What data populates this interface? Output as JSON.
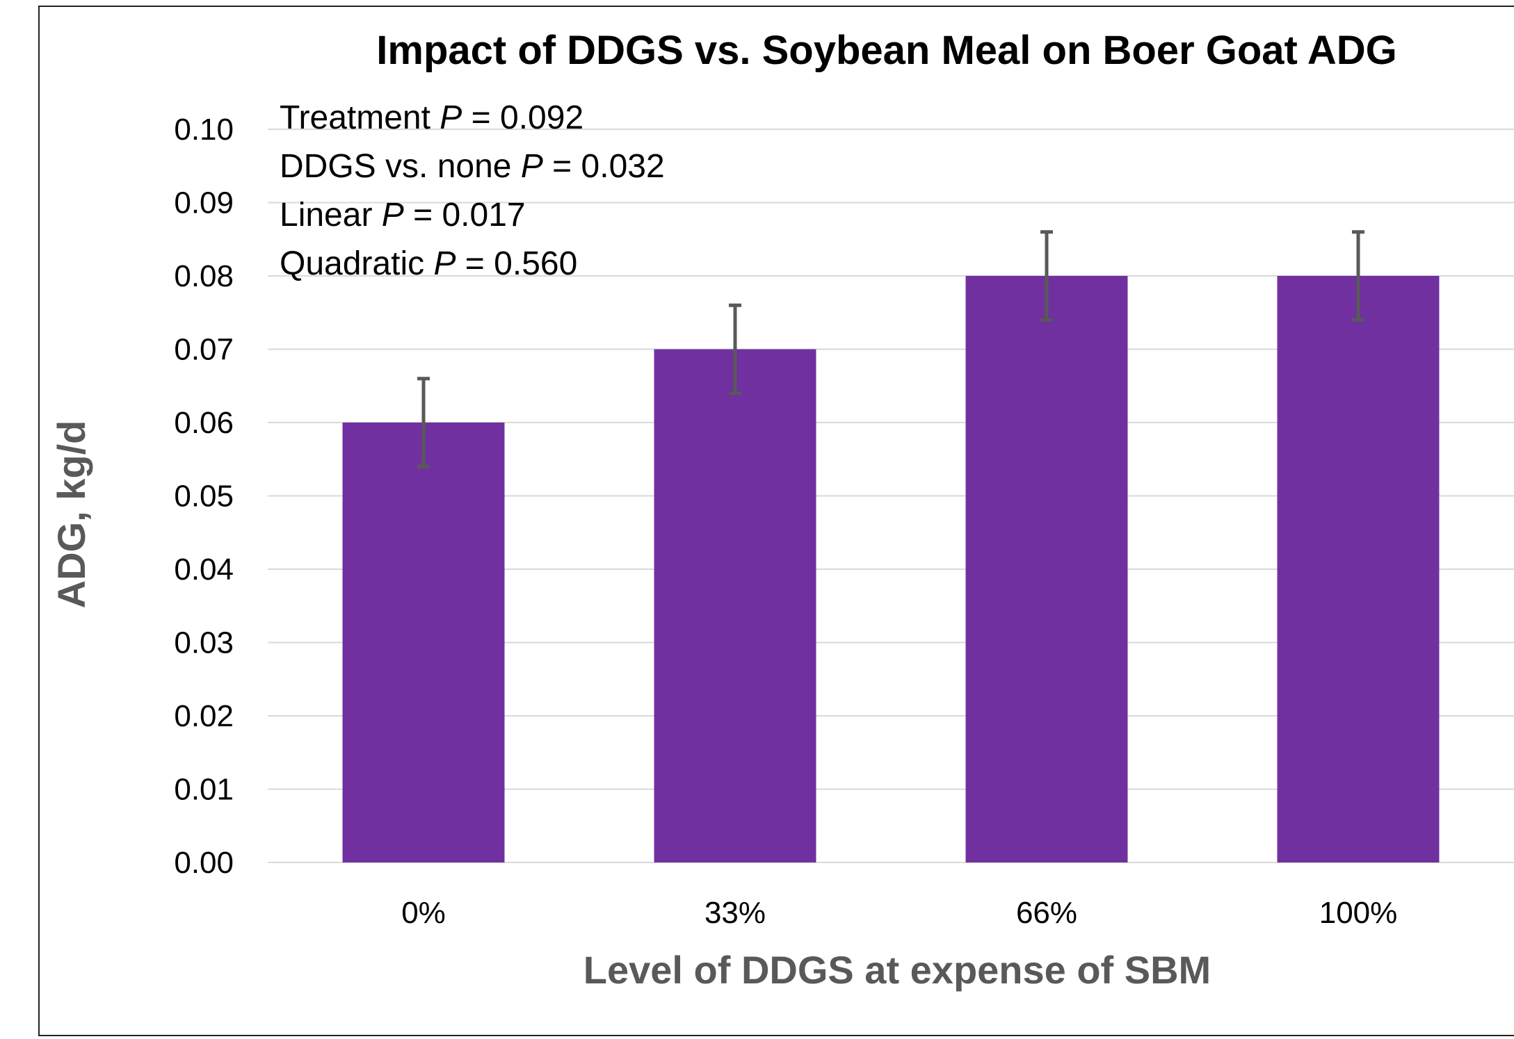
{
  "chart_data": {
    "type": "bar",
    "title": "Impact of DDGS vs. Soybean Meal on Boer Goat ADG",
    "xlabel": "Level of DDGS at expense of SBM",
    "ylabel": "ADG, kg/d",
    "categories": [
      "0%",
      "33%",
      "66%",
      "100%"
    ],
    "values": [
      0.06,
      0.07,
      0.08,
      0.08
    ],
    "error": [
      0.006,
      0.006,
      0.006,
      0.006
    ],
    "ylim": [
      0,
      0.1
    ],
    "yticks": [
      "0.00",
      "0.01",
      "0.02",
      "0.03",
      "0.04",
      "0.05",
      "0.06",
      "0.07",
      "0.08",
      "0.09",
      "0.10"
    ],
    "grid": true,
    "legend": "none",
    "annotations": [
      {
        "prefix": "Treatment ",
        "italic": "P",
        "suffix": " = 0.092"
      },
      {
        "prefix": "DDGS vs. none ",
        "italic": "P",
        "suffix": "  = 0.032"
      },
      {
        "prefix": "Linear ",
        "italic": "P",
        "suffix": " = 0.017"
      },
      {
        "prefix": "Quadratic ",
        "italic": "P",
        "suffix": " = 0.560"
      }
    ]
  },
  "colors": {
    "bar": "#7030A0",
    "error_bar": "#595959",
    "gridline": "#D9D9D9",
    "axis_title": "#595959"
  }
}
